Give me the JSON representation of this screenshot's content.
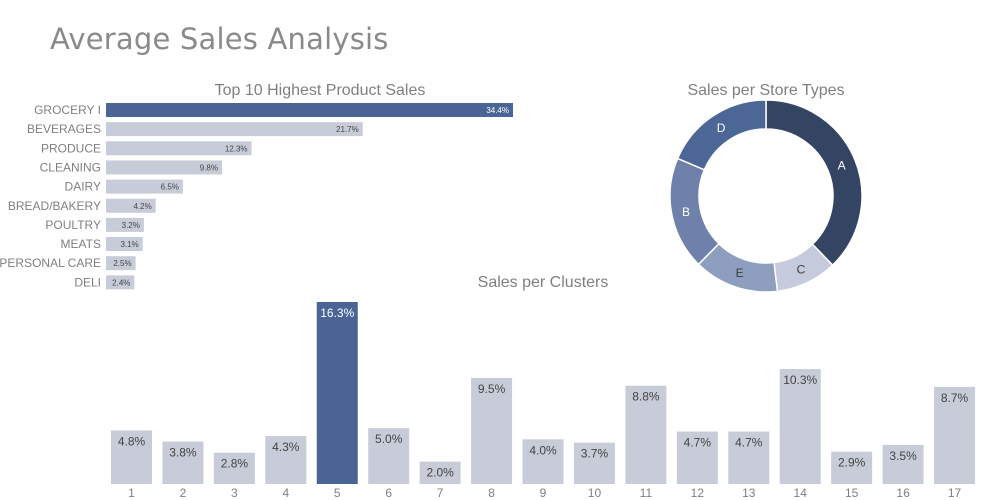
{
  "header": {
    "title": "Average Sales Analysis"
  },
  "colors": {
    "highlight": "#4a6595",
    "muted": "#c7ccd8",
    "text": "#7f7f7f",
    "donut": {
      "A": "#344463",
      "C": "#c5cbdc",
      "E": "#8e9ebf",
      "B": "#6f81ab",
      "D": "#4c6696"
    }
  },
  "chart_data": [
    {
      "type": "bar",
      "orientation": "horizontal",
      "title": "Top 10 Highest Product Sales",
      "categories": [
        "GROCERY I",
        "BEVERAGES",
        "PRODUCE",
        "CLEANING",
        "DAIRY",
        "BREAD/BAKERY",
        "POULTRY",
        "MEATS",
        "PERSONAL CARE",
        "DELI"
      ],
      "values": [
        34.4,
        21.7,
        12.3,
        9.8,
        6.5,
        4.2,
        3.2,
        3.1,
        2.5,
        2.4
      ],
      "labels": [
        "34.4%",
        "21.7%",
        "12.3%",
        "9.8%",
        "6.5%",
        "4.2%",
        "3.2%",
        "3.1%",
        "2.5%",
        "2.4%"
      ],
      "highlight_index": 0
    },
    {
      "type": "pie",
      "variant": "donut",
      "title": "Sales per Store Types",
      "labels": [
        "A",
        "C",
        "E",
        "B",
        "D"
      ],
      "values": [
        37.8,
        10.3,
        14.3,
        19.0,
        18.6
      ]
    },
    {
      "type": "bar",
      "title": "Sales per Clusters",
      "categories": [
        "1",
        "2",
        "3",
        "4",
        "5",
        "6",
        "7",
        "8",
        "9",
        "10",
        "11",
        "12",
        "13",
        "14",
        "15",
        "16",
        "17"
      ],
      "values": [
        4.8,
        3.8,
        2.8,
        4.3,
        16.3,
        5.0,
        2.0,
        9.5,
        4.0,
        3.7,
        8.8,
        4.7,
        4.7,
        10.3,
        2.9,
        3.5,
        8.7
      ],
      "labels": [
        "4.8%",
        "3.8%",
        "2.8%",
        "4.3%",
        "16.3%",
        "5.0%",
        "2.0%",
        "9.5%",
        "4.0%",
        "3.7%",
        "8.8%",
        "4.7%",
        "4.7%",
        "10.3%",
        "2.9%",
        "3.5%",
        "8.7%"
      ],
      "highlight_index": 4
    }
  ]
}
